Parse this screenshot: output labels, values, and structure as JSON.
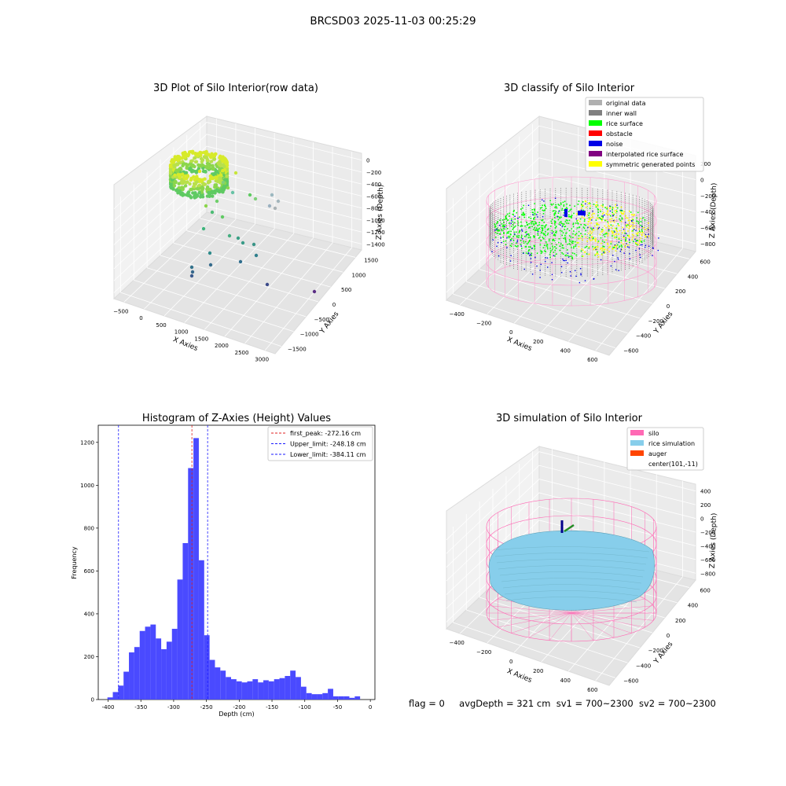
{
  "suptitle": "BRCSD03 2025-11-03 00:25:29",
  "status": {
    "flag": "flag = 0",
    "avg_depth": "avgDepth = 321 cm",
    "sv1": "sv1 = 700~2300",
    "sv2": "sv2 = 700~2300"
  },
  "colors": {
    "histogram_bar": "#4a4aff",
    "peak_line": "#e02020",
    "limit_line": "#1a1aff",
    "rice_surface": "#00ff00",
    "noise": "#0000e6",
    "inner_wall": "#808080",
    "symmetric_points": "#ffff00",
    "silo": "#ff69b4",
    "rice_simulation": "#87ceeb",
    "auger": "#ff4500"
  },
  "chart_data": [
    {
      "type": "scatter",
      "projection": "3d",
      "title": "3D Plot of Silo Interior(row data)",
      "xlabel": "X Axies",
      "ylabel": "Y Axies",
      "zlabel": "Z Axies (Depth)",
      "x_ticks": [
        "−500",
        "0",
        "500",
        "1000",
        "1500",
        "2000",
        "2500",
        "3000"
      ],
      "y_ticks": [
        "−1500",
        "−1000",
        "−500",
        "0",
        "500",
        "1000",
        "1500"
      ],
      "z_ticks": [
        "0",
        "−200",
        "−400",
        "−600",
        "−800",
        "−1000",
        "−1200",
        "−1400"
      ],
      "grid": true
    },
    {
      "type": "scatter",
      "projection": "3d",
      "title": "3D classify of Silo Interior",
      "xlabel": "X Axies",
      "ylabel": "Y Axies",
      "zlabel": "Z Axies (Depth)",
      "x_ticks": [
        "−400",
        "−200",
        "0",
        "200",
        "400",
        "600"
      ],
      "y_ticks": [
        "−600",
        "−400",
        "−200",
        "0",
        "200",
        "400",
        "600"
      ],
      "z_ticks": [
        "200",
        "0",
        "−200",
        "−400",
        "−600",
        "−800"
      ],
      "legend_position": "top-right",
      "legend": [
        {
          "label": "original data",
          "color": "#b0b0b0"
        },
        {
          "label": "inner wall",
          "color": "#808080"
        },
        {
          "label": "rice surface",
          "color": "#00ff00"
        },
        {
          "label": "obstacle",
          "color": "#ff0000"
        },
        {
          "label": "noise",
          "color": "#0000e6"
        },
        {
          "label": "interpolated rice surface",
          "color": "#800080"
        },
        {
          "label": "symmetric generated points",
          "color": "#ffff00"
        }
      ],
      "grid": true
    },
    {
      "type": "bar",
      "title": "Histogram of Z-Axies (Height) Values",
      "xlabel": "Depth (cm)",
      "ylabel": "Frequency",
      "xlim": [
        -415,
        7
      ],
      "ylim": [
        0,
        1280
      ],
      "x_ticks": [
        -400,
        -350,
        -300,
        -250,
        -200,
        -150,
        -100,
        -50,
        0
      ],
      "y_ticks": [
        0,
        200,
        400,
        600,
        800,
        1000,
        1200
      ],
      "bin_start": -401,
      "bin_width": 8.2,
      "values": [
        10,
        35,
        65,
        130,
        220,
        245,
        320,
        340,
        350,
        285,
        235,
        270,
        330,
        560,
        730,
        1080,
        1220,
        650,
        300,
        185,
        150,
        135,
        105,
        95,
        85,
        80,
        85,
        95,
        80,
        90,
        85,
        95,
        100,
        110,
        135,
        105,
        60,
        30,
        25,
        25,
        30,
        50,
        15,
        15,
        15,
        8,
        15
      ],
      "vlines": [
        {
          "name": "first_peak",
          "x": -272.16,
          "color": "#e02020",
          "label": "first_peak: -272.16 cm"
        },
        {
          "name": "upper_limit",
          "x": -248.18,
          "color": "#1a1aff",
          "label": "Upper_limit: -248.18 cm"
        },
        {
          "name": "lower_limit",
          "x": -384.11,
          "color": "#1a1aff",
          "label": "Lower_limit: -384.11 cm"
        }
      ],
      "legend_position": "top-right",
      "grid": false
    },
    {
      "type": "surface",
      "projection": "3d",
      "title": "3D simulation of Silo Interior",
      "xlabel": "X Axies",
      "ylabel": "Y Axies",
      "zlabel": "Z Axies (Depth)",
      "x_ticks": [
        "−400",
        "−200",
        "0",
        "200",
        "400",
        "600"
      ],
      "y_ticks": [
        "−600",
        "−400",
        "−200",
        "0",
        "200",
        "400",
        "600"
      ],
      "z_ticks": [
        "400",
        "200",
        "0",
        "−200",
        "−400",
        "−600",
        "−800"
      ],
      "legend_position": "top-right",
      "legend": [
        {
          "label": "silo",
          "color": "#ff69b4"
        },
        {
          "label": "rice simulation",
          "color": "#87ceeb"
        },
        {
          "label": "auger",
          "color": "#ff4500"
        },
        {
          "label": "center(101,-11)",
          "color": "none"
        }
      ],
      "grid": true
    }
  ]
}
